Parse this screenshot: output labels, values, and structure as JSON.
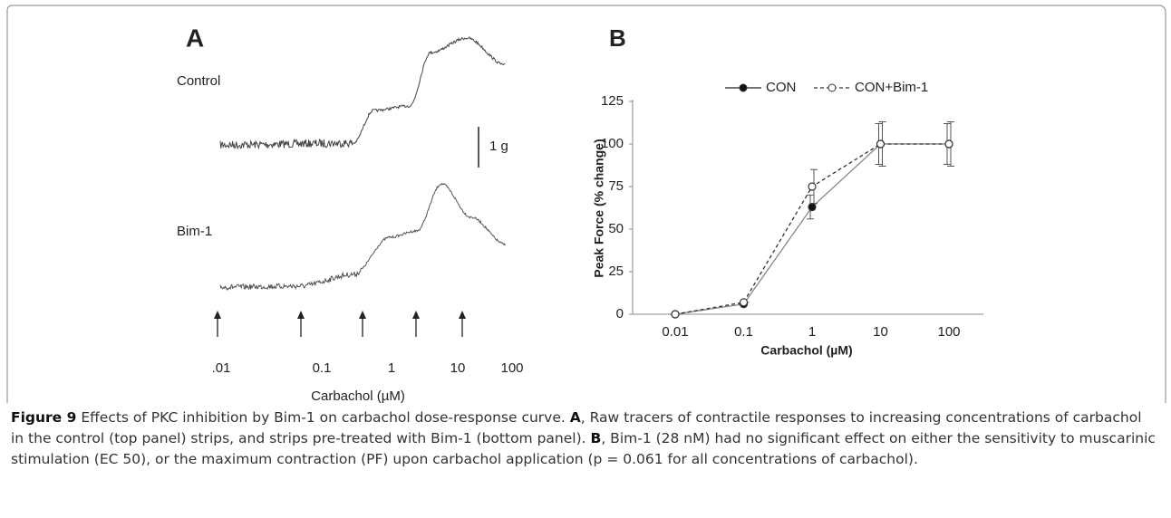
{
  "panel_a": {
    "label": "A",
    "control_label": "Control",
    "bim_label": "Bim-1",
    "scale_label": "1 g",
    "concentrations": [
      ".01",
      "0.1",
      "1",
      "10",
      "100"
    ],
    "x_label": "Carbachol (µM)"
  },
  "panel_b_label": "B",
  "chart_data": {
    "type": "line",
    "x_label": "Carbachol (µM)",
    "y_label": "Peak Force (% change)",
    "categories": [
      "0.01",
      "0.1",
      "1",
      "10",
      "100"
    ],
    "series": [
      {
        "name": "CON",
        "color": "#888888",
        "marker": "filled",
        "dashed": false,
        "values": [
          0,
          6,
          63,
          100,
          100
        ],
        "errors": [
          0,
          0,
          7,
          12,
          12
        ]
      },
      {
        "name": "CON+Bim-1",
        "color": "#333333",
        "marker": "open",
        "dashed": true,
        "values": [
          0,
          7,
          75,
          100,
          100
        ],
        "errors": [
          0,
          0,
          10,
          13,
          13
        ]
      }
    ],
    "ylim": [
      0,
      125
    ],
    "yticks": [
      0,
      25,
      50,
      75,
      100,
      125
    ],
    "grid": false,
    "legend": "top"
  },
  "caption": {
    "figure_label": "Figure 9",
    "title": "Effects of PKC inhibition by Bim-1 on carbachol dose-response curve.",
    "a_label": "A",
    "a_text": ", Raw tracers of contractile responses to increasing concentrations of carbachol in the control (top panel) strips, and strips pre-treated with Bim-1 (bottom panel).",
    "b_label": "B",
    "b_text": ", Bim-1 (28 nM) had no significant effect on either the sensitivity to muscarinic stimulation (EC 50), or the maximum contraction (PF) upon carbachol application (p = 0.061 for all concentrations of carbachol)."
  }
}
